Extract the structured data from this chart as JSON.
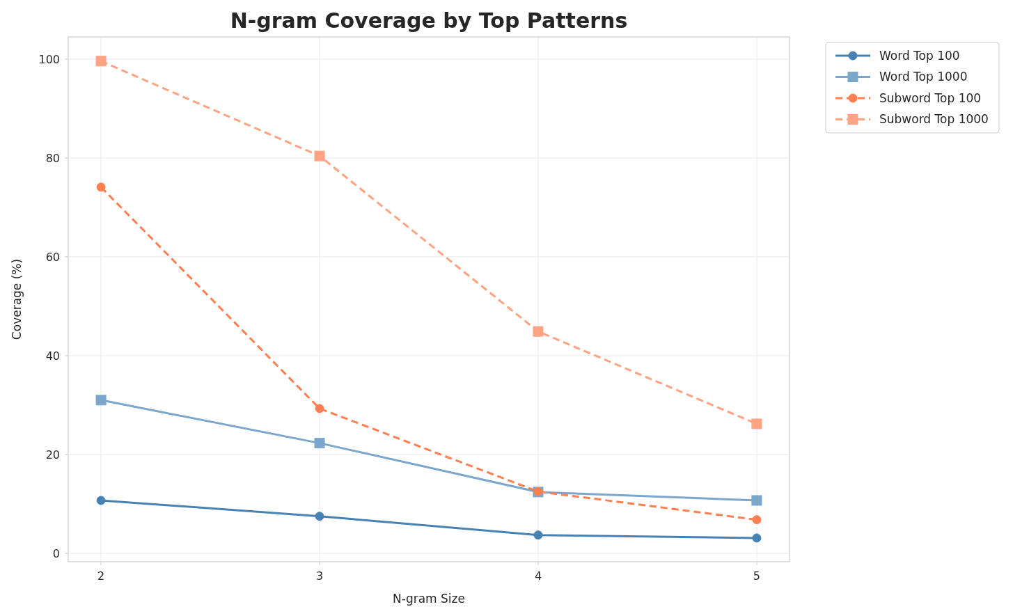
{
  "chart_data": {
    "type": "line",
    "title": "N-gram Coverage by Top Patterns",
    "xlabel": "N-gram Size",
    "ylabel": "Coverage (%)",
    "x": [
      2,
      3,
      4,
      5
    ],
    "series": [
      {
        "name": "Word Top 100",
        "color": "#4682b4",
        "values": [
          10.7,
          7.5,
          3.7,
          3.1
        ],
        "marker": "circle",
        "line_style": "solid"
      },
      {
        "name": "Word Top 1000",
        "color": "#7ba7cc",
        "values": [
          31.0,
          22.3,
          12.4,
          10.7
        ],
        "marker": "square",
        "line_style": "solid"
      },
      {
        "name": "Subword Top 100",
        "color": "#ff7f50",
        "values": [
          74.1,
          29.3,
          12.5,
          6.8
        ],
        "marker": "circle",
        "line_style": "dashed"
      },
      {
        "name": "Subword Top 1000",
        "color": "#ffa383",
        "values": [
          99.6,
          80.4,
          44.9,
          26.2
        ],
        "marker": "square",
        "line_style": "dashed"
      }
    ],
    "xlim": [
      1.85,
      5.15
    ],
    "xticks": [
      2,
      3,
      4,
      5
    ],
    "ylim": [
      -1.7,
      104.5
    ],
    "yticks": [
      0,
      20,
      40,
      60,
      80,
      100
    ],
    "grid": true,
    "legend": "top right"
  }
}
